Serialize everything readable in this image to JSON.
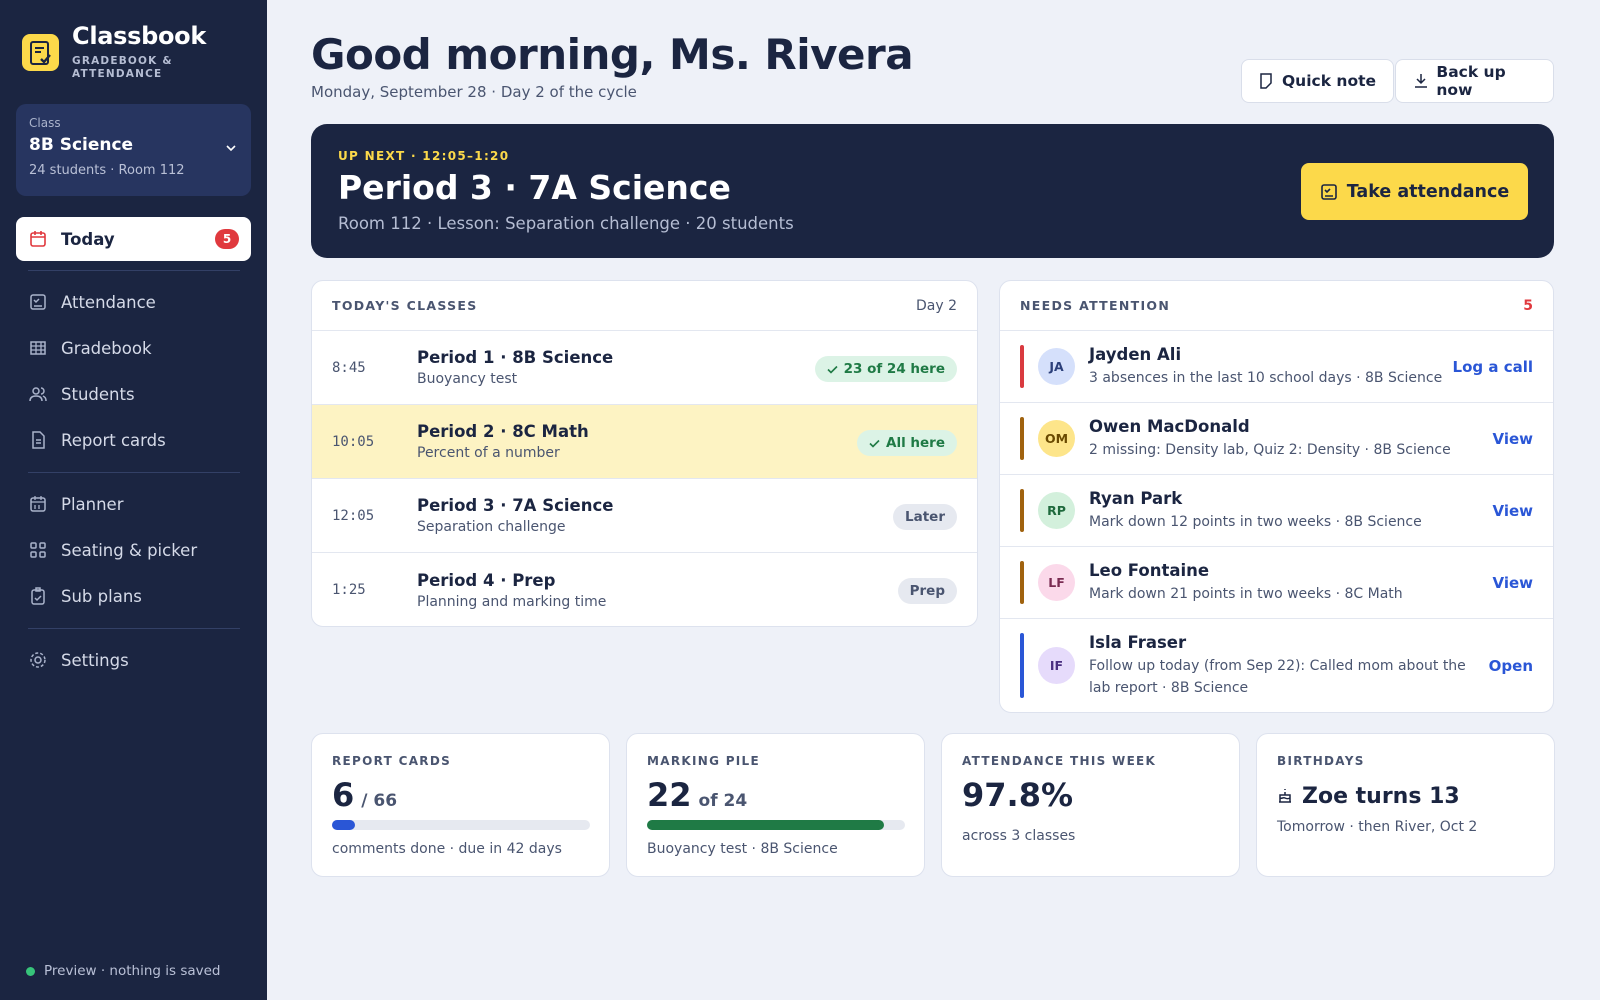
{
  "app": {
    "name": "Classbook",
    "tagline": "GRADEBOOK & ATTENDANCE"
  },
  "class_picker": {
    "label": "Class",
    "name": "8B Science",
    "details": "24 students · Room 112"
  },
  "nav": [
    {
      "label": "Today",
      "badge": 5
    },
    {
      "label": "Attendance"
    },
    {
      "label": "Gradebook"
    },
    {
      "label": "Students"
    },
    {
      "label": "Report cards"
    },
    {
      "label": "Planner"
    },
    {
      "label": "Seating & picker"
    },
    {
      "label": "Sub plans"
    },
    {
      "label": "Settings"
    }
  ],
  "footer": "Preview · nothing is saved",
  "header": {
    "greeting": "Good morning, Ms. Rivera",
    "date": "Monday, September 28 · Day 2 of the cycle",
    "actions": [
      "Quick note",
      "Back up now"
    ]
  },
  "up_next": {
    "eyebrow": "UP NEXT · 12:05–1:20",
    "title": "Period 3 · 7A Science",
    "details": "Room 112 · Lesson: Separation challenge · 20 students",
    "action": "Take attendance"
  },
  "todays_classes": {
    "title": "TODAY'S CLASSES",
    "day": "Day 2",
    "rows": [
      {
        "time": "8:45",
        "title": "Period 1 · 8B Science",
        "subtitle": "Buoyancy test",
        "status": "23 of 24 here"
      },
      {
        "time": "10:05",
        "title": "Period 2 · 8C Math",
        "subtitle": "Percent of a number",
        "status": "All here"
      },
      {
        "time": "12:05",
        "title": "Period 3 · 7A Science",
        "subtitle": "Separation challenge",
        "status": "Later"
      },
      {
        "time": "1:25",
        "title": "Period 4 · Prep",
        "subtitle": "Planning and marking time",
        "status": "Prep"
      }
    ]
  },
  "needs_attention": {
    "title": "NEEDS ATTENTION",
    "count": 5,
    "items": [
      {
        "initials": "JA",
        "name": "Jayden Ali",
        "detail": "3 absences in the last 10 school days · 8B Science",
        "action": "Log a call"
      },
      {
        "initials": "OM",
        "name": "Owen MacDonald",
        "detail": "2 missing: Density lab, Quiz 2: Density · 8B Science",
        "action": "View"
      },
      {
        "initials": "RP",
        "name": "Ryan Park",
        "detail": "Mark down 12 points in two weeks · 8B Science",
        "action": "View"
      },
      {
        "initials": "LF",
        "name": "Leo Fontaine",
        "detail": "Mark down 21 points in two weeks · 8C Math",
        "action": "View"
      },
      {
        "initials": "IF",
        "name": "Isla Fraser",
        "detail": "Follow up today (from Sep 22): Called mom about the lab report · 8B Science",
        "action": "Open"
      }
    ]
  },
  "stats": [
    {
      "label": "REPORT CARDS",
      "value": 6,
      "separator": "/",
      "total": 66,
      "note": "comments done · due in 42 days"
    },
    {
      "label": "MARKING PILE",
      "value": 22,
      "separator": "of",
      "total": 24,
      "note": "Buoyancy test · 8B Science"
    },
    {
      "label": "ATTENDANCE THIS WEEK",
      "value": "97.8%",
      "note": "across 3 classes"
    },
    {
      "label": "BIRTHDAYS",
      "value": "Zoe turns 13",
      "note": "Tomorrow · then River, Oct 2"
    }
  ]
}
